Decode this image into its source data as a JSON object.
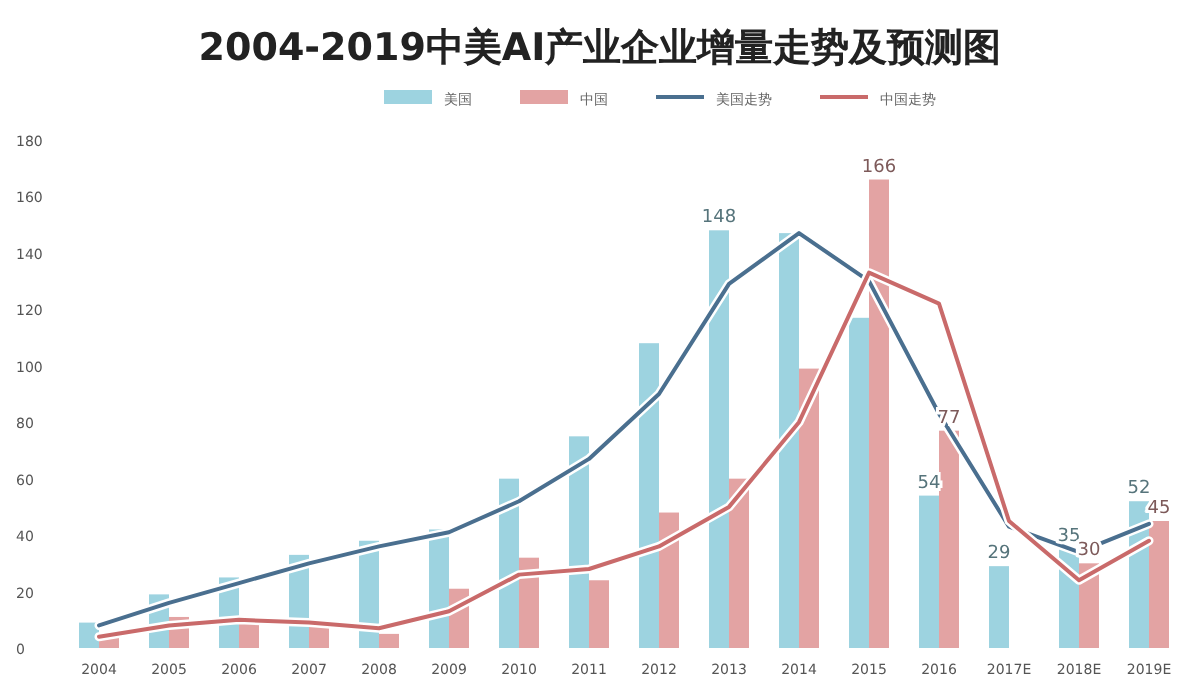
{
  "chart_data": {
    "type": "bar",
    "title": "2004-2019中美AI产业企业增量走势及预测图",
    "categories": [
      "2004",
      "2005",
      "2006",
      "2007",
      "2008",
      "2009",
      "2010",
      "2011",
      "2012",
      "2013",
      "2014",
      "2015",
      "2016",
      "2017E",
      "2018E",
      "2019E"
    ],
    "series": [
      {
        "name": "美国",
        "color": "#9dd3e0",
        "values": [
          9,
          19,
          25,
          33,
          38,
          42,
          60,
          75,
          108,
          148,
          147,
          117,
          54,
          29,
          35,
          52
        ],
        "value_labels": [
          null,
          null,
          null,
          null,
          null,
          null,
          null,
          null,
          null,
          "148",
          null,
          null,
          "54",
          "29",
          "35",
          "52"
        ]
      },
      {
        "name": "中国",
        "color": "#e3a3a3",
        "values": [
          5,
          11,
          9,
          9,
          5,
          21,
          32,
          24,
          48,
          60,
          99,
          166,
          77,
          null,
          30,
          45
        ],
        "value_labels": [
          null,
          null,
          null,
          null,
          null,
          null,
          null,
          null,
          null,
          null,
          null,
          "166",
          "77",
          null,
          "30",
          "45"
        ]
      },
      {
        "name": "美国走势",
        "type": "line",
        "color": "#4a6f8f",
        "values": [
          8,
          16,
          23,
          30,
          36,
          41,
          52,
          67,
          90,
          129,
          147,
          130,
          83,
          43,
          34,
          44
        ]
      },
      {
        "name": "中国走势",
        "type": "line",
        "color": "#c96a6a",
        "values": [
          4,
          8,
          10,
          9,
          7,
          13,
          26,
          28,
          36,
          50,
          80,
          133,
          122,
          45,
          24,
          38
        ]
      }
    ],
    "ylim": [
      0,
      180
    ],
    "yticks": [
      0,
      20,
      40,
      60,
      80,
      100,
      120,
      140,
      160,
      180
    ],
    "legend": "top",
    "grid": false
  }
}
